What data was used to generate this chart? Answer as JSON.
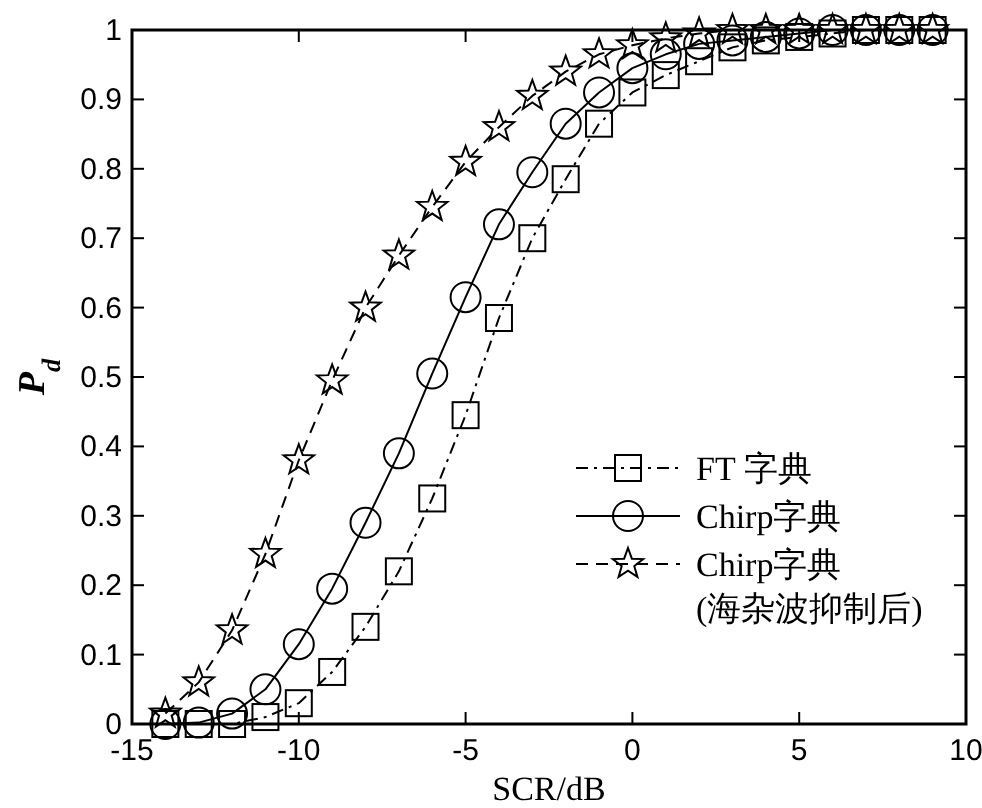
{
  "chart_data": {
    "type": "line",
    "xlabel": "SCR/dB",
    "ylabel": "P$_{d}$",
    "x": [
      -14,
      -13,
      -12,
      -11,
      -10,
      -9,
      -8,
      -7,
      -6,
      -5,
      -4,
      -3,
      -2,
      -1,
      0,
      1,
      2,
      3,
      4,
      5,
      6,
      7,
      8,
      9
    ],
    "series": [
      {
        "name": "FT 字典",
        "color": "#000000",
        "marker": "square",
        "line_style": "dashdot",
        "values": [
          0,
          0,
          0,
          0.01,
          0.03,
          0.075,
          0.14,
          0.22,
          0.325,
          0.445,
          0.585,
          0.7,
          0.785,
          0.865,
          0.91,
          0.935,
          0.955,
          0.975,
          0.985,
          0.99,
          0.995,
          1,
          1,
          1
        ]
      },
      {
        "name": "Chirp字典",
        "color": "#000000",
        "marker": "circle",
        "line_style": "solid",
        "values": [
          0,
          0.002,
          0.015,
          0.05,
          0.115,
          0.195,
          0.29,
          0.39,
          0.505,
          0.615,
          0.72,
          0.795,
          0.865,
          0.91,
          0.945,
          0.965,
          0.98,
          0.985,
          0.99,
          0.995,
          1,
          1,
          1,
          1
        ]
      },
      {
        "name": "Chirp字典\n(海杂波抑制后)",
        "color": "#000000",
        "marker": "star",
        "line_style": "dashed",
        "values": [
          0.015,
          0.06,
          0.135,
          0.245,
          0.38,
          0.495,
          0.6,
          0.675,
          0.745,
          0.81,
          0.86,
          0.905,
          0.94,
          0.965,
          0.978,
          0.988,
          0.995,
          1,
          1,
          1,
          1,
          1,
          1,
          1
        ]
      }
    ],
    "xlim": [
      -15,
      10
    ],
    "xticks": [
      -15,
      -10,
      -5,
      0,
      5,
      10
    ],
    "ylim": [
      0,
      1
    ],
    "yticks": [
      0,
      {
        "value": 0.1,
        "label": "0.1"
      },
      {
        "value": 0.2,
        "label": "0.2"
      },
      {
        "value": 0.3,
        "label": "0.3"
      },
      {
        "value": 0.4,
        "label": "0.4"
      },
      {
        "value": 0.5,
        "label": "0.5"
      },
      {
        "value": 0.6,
        "label": "0.6"
      },
      {
        "value": 0.7,
        "label": "0.7"
      },
      {
        "value": 0.8,
        "label": "0.8"
      },
      {
        "value": 0.9,
        "label": "0.9"
      },
      1
    ],
    "grid": false,
    "legend": "bottom right"
  }
}
